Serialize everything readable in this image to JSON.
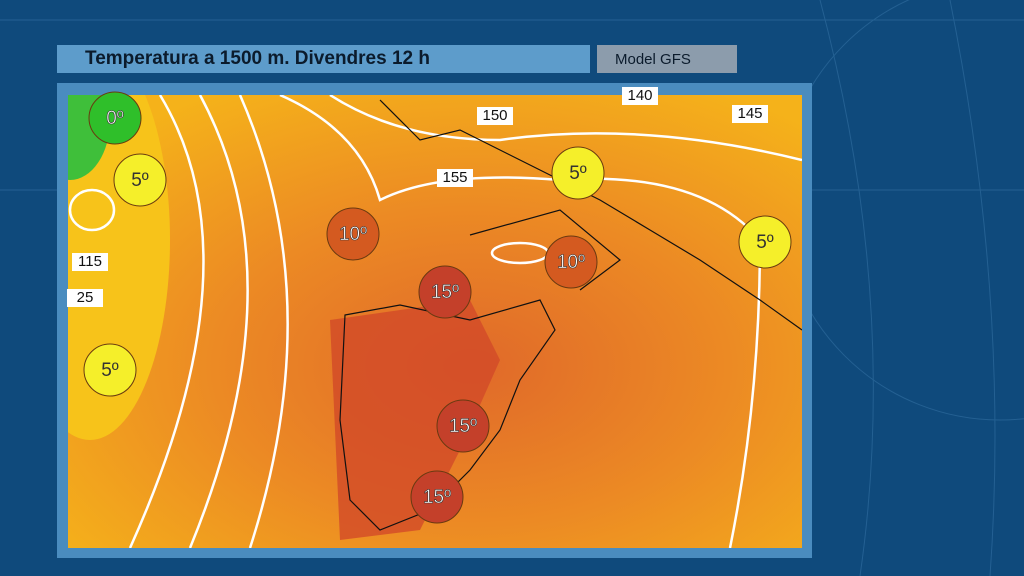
{
  "header": {
    "title": "Temperatura a 1500 m.  Divendres 12 h",
    "model": "Model GFS"
  },
  "map": {
    "contour_labels": [
      "150",
      "155",
      "145",
      "140",
      "115",
      "25"
    ],
    "temperature_markers": [
      {
        "label": "0º"
      },
      {
        "label": "5º"
      },
      {
        "label": "5º"
      },
      {
        "label": "5º"
      },
      {
        "label": "5º"
      },
      {
        "label": "10º"
      },
      {
        "label": "10º"
      },
      {
        "label": "15º"
      },
      {
        "label": "15º"
      },
      {
        "label": "15º"
      }
    ]
  }
}
